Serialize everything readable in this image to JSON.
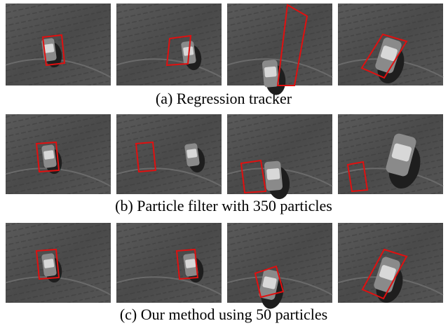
{
  "figure": {
    "captions": [
      "(a) Regression tracker",
      "(b) Particle filter with 350 particles",
      "(c) Our method using 50 particles"
    ]
  }
}
